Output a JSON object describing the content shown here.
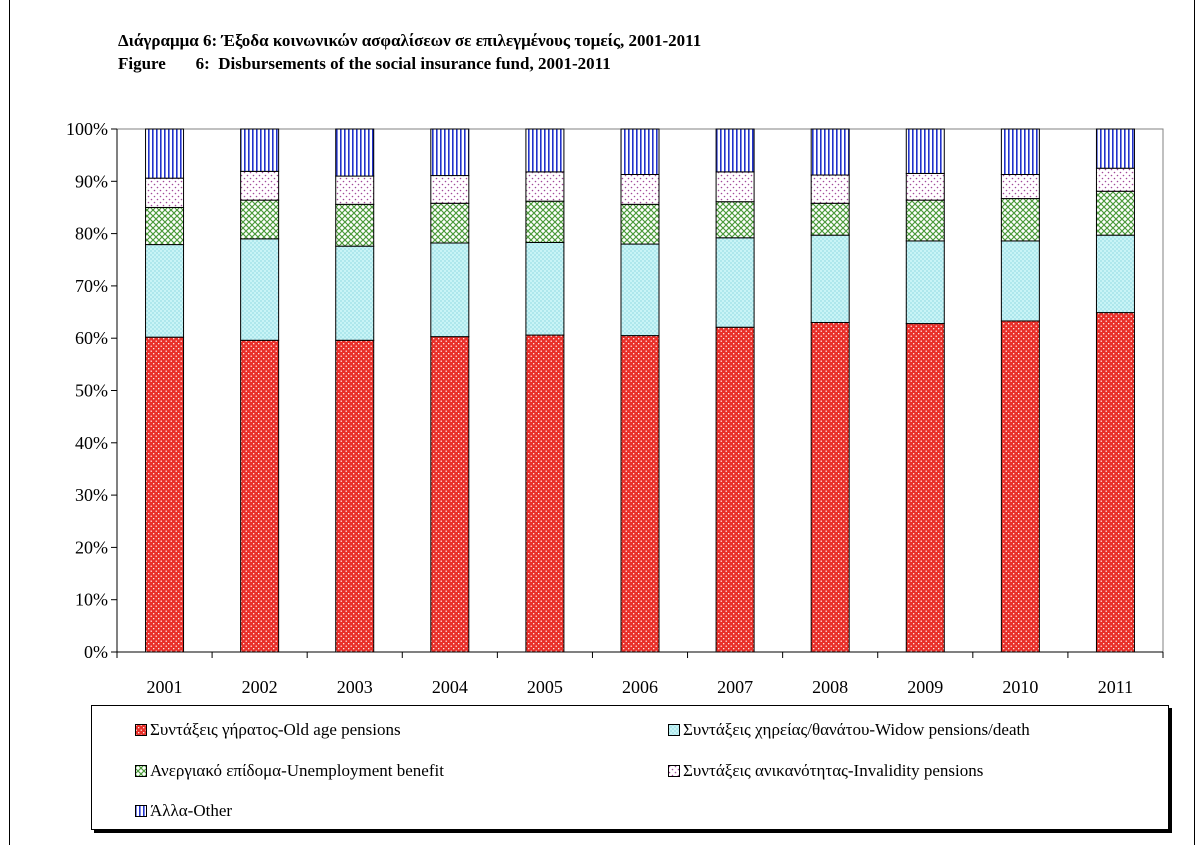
{
  "chart_data": {
    "type": "bar",
    "stacked": true,
    "title": "Διάγραμμα 6: Έξοδα κοινωνικών ασφαλίσεων σε επιλεγμένους τομείς, 2001-2011",
    "subtitle": "Figure       6:  Disbursements of the social insurance fund, 2001-2011",
    "xlabel": "",
    "ylabel": "",
    "ylim": [
      0,
      100
    ],
    "y_ticks": [
      "0%",
      "10%",
      "20%",
      "30%",
      "40%",
      "50%",
      "60%",
      "70%",
      "80%",
      "90%",
      "100%"
    ],
    "grid": false,
    "legend_position": "bottom",
    "categories": [
      "2001",
      "2002",
      "2003",
      "2004",
      "2005",
      "2006",
      "2007",
      "2008",
      "2009",
      "2010",
      "2011"
    ],
    "series": [
      {
        "name": "Συντάξεις γήρατος-Old age pensions",
        "color": "#e8302a",
        "values": [
          60.2,
          59.6,
          59.6,
          60.3,
          60.6,
          60.5,
          62.1,
          63.0,
          62.8,
          63.3,
          64.9
        ]
      },
      {
        "name": "Συντάξεις χηρείας/θανάτου-Widow pensions/death",
        "color": "#c8f4f6",
        "values": [
          17.7,
          19.4,
          18.0,
          17.9,
          17.7,
          17.5,
          17.1,
          16.7,
          15.8,
          15.3,
          14.8
        ]
      },
      {
        "name": "Ανεργιακό επίδομα-Unemployment benefit",
        "color": "#5aa34a",
        "values": [
          7.1,
          7.4,
          8.0,
          7.6,
          7.9,
          7.6,
          6.9,
          6.1,
          7.8,
          8.1,
          8.4
        ]
      },
      {
        "name": "Συντάξεις ανικανότητας-Invalidity pensions",
        "color": "#a24a9a",
        "values": [
          5.6,
          5.5,
          5.4,
          5.3,
          5.6,
          5.7,
          5.7,
          5.4,
          5.1,
          4.6,
          4.4
        ]
      },
      {
        "name": "Άλλα-Other",
        "color": "#2233cc",
        "values": [
          9.4,
          8.1,
          9.0,
          8.9,
          8.2,
          8.7,
          8.2,
          8.8,
          8.5,
          8.7,
          7.5
        ]
      }
    ]
  }
}
